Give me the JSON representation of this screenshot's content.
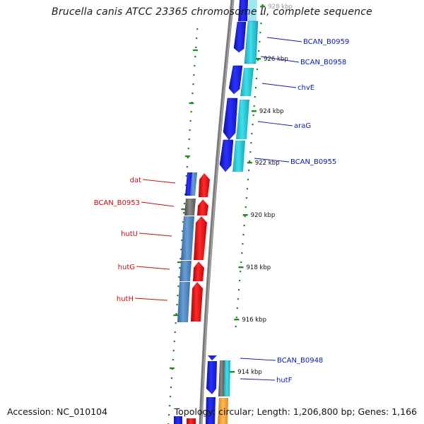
{
  "title": "Brucella canis ATCC 23365 chromosome II, complete sequence",
  "accession": "Accession: NC_010104",
  "topology": "Topology: circular; Length: 1,206,800 bp; Genes: 1,166",
  "colors": {
    "forward_label": "#0a1aa8",
    "reverse_label": "#c01010",
    "backbone": "#7a7a7a",
    "tick": "#1f8a1f",
    "cds_blue": "#1e22e6",
    "cds_cyan": "#22c8d6",
    "cds_red": "#ee1111",
    "cds_steel": "#4d86c2",
    "cds_gray": "#6f6f6f",
    "cds_orange": "#f0a030"
  },
  "kbp_markers": [
    "928 kbp",
    "926 kbp",
    "924 kbp",
    "922 kbp",
    "920 kbp",
    "918 kbp",
    "916 kbp",
    "914 kbp"
  ],
  "genes_forward": [
    {
      "name": "BCAN_B0959"
    },
    {
      "name": "BCAN_B0958"
    },
    {
      "name": "chvE"
    },
    {
      "name": "araG"
    },
    {
      "name": "BCAN_B0955"
    },
    {
      "name": "BCAN_B0948"
    },
    {
      "name": "hutF"
    }
  ],
  "genes_reverse": [
    {
      "name": "dat"
    },
    {
      "name": "BCAN_B0953"
    },
    {
      "name": "hutU"
    },
    {
      "name": "hutG"
    },
    {
      "name": "hutH"
    }
  ]
}
